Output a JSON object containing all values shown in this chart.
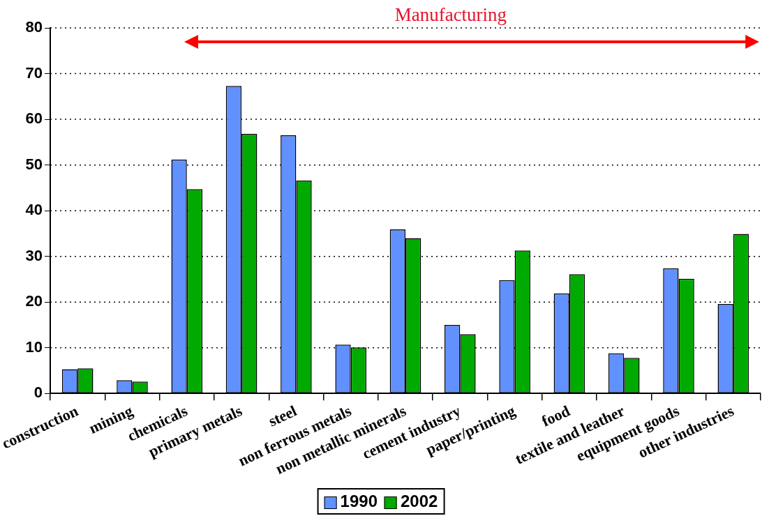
{
  "chart_data": {
    "type": "bar",
    "annotations": [
      "Manufacturing"
    ],
    "categories": [
      "construction",
      "mining",
      "chemicals",
      "primary metals",
      "steel",
      "non ferrous metals",
      "non metallic minerals",
      "cement industry",
      "paper/printing",
      "food",
      "textile and leather",
      "equipment goods",
      "other industries"
    ],
    "series": [
      {
        "name": "1990",
        "color": "#6190ff",
        "values": [
          5.3,
          2.9,
          51.2,
          67.3,
          56.5,
          10.7,
          35.9,
          15.0,
          24.8,
          21.9,
          8.8,
          27.4,
          19.6
        ]
      },
      {
        "name": "2002",
        "color": "#00aa00",
        "values": [
          5.5,
          2.6,
          44.7,
          56.8,
          46.6,
          10.1,
          34.0,
          13.0,
          31.3,
          26.1,
          7.8,
          25.1,
          34.9
        ]
      }
    ],
    "ylim": [
      0,
      80
    ],
    "yticks": [
      0,
      10,
      20,
      30,
      40,
      50,
      60,
      70,
      80
    ],
    "grid": "y",
    "legend": "bottom"
  }
}
